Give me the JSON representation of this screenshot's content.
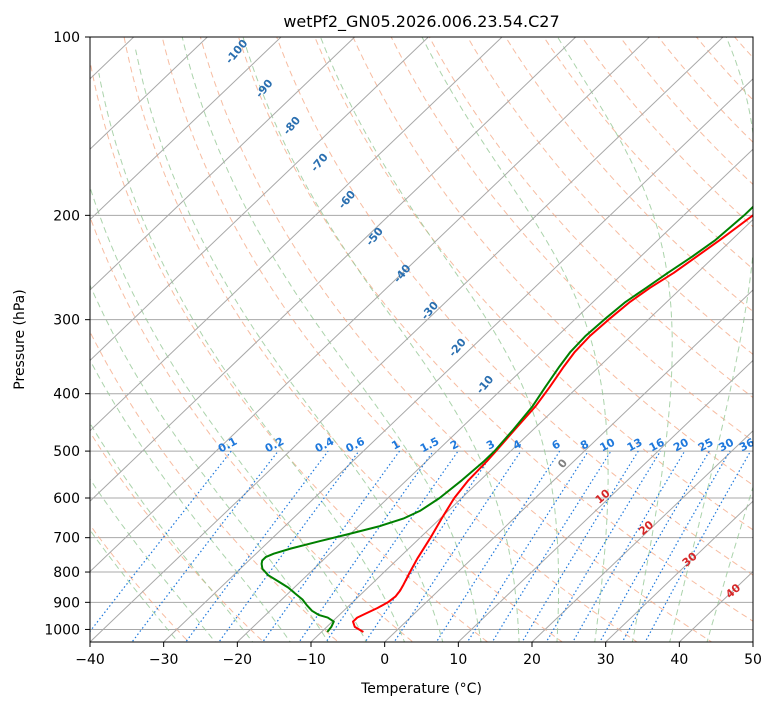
{
  "chart_data": {
    "type": "line",
    "diagram": "skew-T log-p",
    "title": "wetPf2_GN05.2026.006.23.54.C27",
    "xlabel": "Temperature (°C)",
    "ylabel": "Pressure (hPa)",
    "xlim": [
      -40,
      50
    ],
    "ylim": [
      1050,
      100
    ],
    "y_scale": "log",
    "x_ticks": [
      -40,
      -30,
      -20,
      -10,
      0,
      10,
      20,
      30,
      40,
      50
    ],
    "x_tick_labels": [
      "−40",
      "−30",
      "−20",
      "−10",
      "0",
      "10",
      "20",
      "30",
      "40",
      "50"
    ],
    "y_ticks": [
      100,
      200,
      300,
      400,
      500,
      600,
      700,
      800,
      900,
      1000
    ],
    "y_tick_labels": [
      "100",
      "200",
      "300",
      "400",
      "500",
      "600",
      "700",
      "800",
      "900",
      "1000"
    ],
    "grid": true,
    "series": [
      {
        "color": "#ff0000",
        "p": [
          1010,
          990,
          970,
          955,
          940,
          920,
          900,
          880,
          860,
          840,
          800,
          760,
          700,
          650,
          600,
          560,
          520,
          500,
          460,
          420,
          390,
          360,
          340,
          320,
          300,
          280,
          265,
          250,
          235,
          220,
          200,
          180,
          160,
          150,
          140,
          130,
          120,
          110,
          100
        ],
        "t": [
          -4.3,
          -6.2,
          -7.2,
          -7.2,
          -6.6,
          -5.8,
          -5.2,
          -5.0,
          -5.2,
          -5.6,
          -6.5,
          -7.4,
          -8.6,
          -9.8,
          -11.0,
          -11.6,
          -11.8,
          -12.0,
          -12.5,
          -13.0,
          -13.8,
          -14.8,
          -15.4,
          -15.6,
          -15.4,
          -15.0,
          -14.3,
          -13.2,
          -12.4,
          -11.6,
          -10.6,
          -9.5,
          -8.7,
          -7.8,
          -6.8,
          -6.0,
          -5.4,
          -4.8,
          -4.2
        ]
      },
      {
        "color": "#008000",
        "p": [
          1010,
          990,
          970,
          955,
          945,
          930,
          910,
          890,
          870,
          850,
          830,
          810,
          790,
          775,
          765,
          755,
          745,
          730,
          710,
          690,
          670,
          650,
          630,
          600,
          560,
          520,
          500,
          460,
          420,
          390,
          360,
          340,
          320,
          300,
          280,
          265,
          250,
          235,
          220,
          200,
          180,
          170,
          160,
          150,
          140,
          130,
          120,
          110,
          100
        ],
        "t": [
          -9.2,
          -9.4,
          -9.8,
          -11.2,
          -12.8,
          -14.3,
          -15.8,
          -17.2,
          -19.0,
          -20.8,
          -23.0,
          -25.3,
          -27.0,
          -27.8,
          -28.2,
          -28.2,
          -27.6,
          -26.0,
          -23.2,
          -20.2,
          -17.2,
          -15.0,
          -13.8,
          -13.0,
          -12.5,
          -12.2,
          -12.2,
          -12.7,
          -13.4,
          -14.4,
          -15.4,
          -16.0,
          -16.2,
          -16.0,
          -15.6,
          -14.8,
          -14.0,
          -13.0,
          -12.2,
          -11.8,
          -11.8,
          -12.0,
          -12.0,
          -11.4,
          -10.4,
          -9.0,
          -7.6,
          -6.0,
          -4.0
        ]
      }
    ],
    "annotations": {
      "dry_adiabat_labels": [
        "-100",
        "-90",
        "-80",
        "-70",
        "-60",
        "-50",
        "-40",
        "-30",
        "-20",
        "-10",
        "0",
        "10",
        "20",
        "30",
        "40"
      ],
      "mixing_ratio_labels": [
        "0.1",
        "0.2",
        "0.4",
        "0.6",
        "1",
        "1.5",
        "2",
        "3",
        "4",
        "6",
        "8",
        "10",
        "13",
        "16",
        "20",
        "25",
        "30",
        "36"
      ]
    }
  },
  "colors": {
    "temperature": "#ff0000",
    "dewpoint": "#008000",
    "isotherm": "#a8a8a8",
    "dry_adiabat": "#f4a582",
    "moist_adiabat": "#96c896",
    "mixing_ratio": "#1e78dc",
    "isotherm_label": "#2a6fb0",
    "adiabat_label": "#d62728"
  }
}
